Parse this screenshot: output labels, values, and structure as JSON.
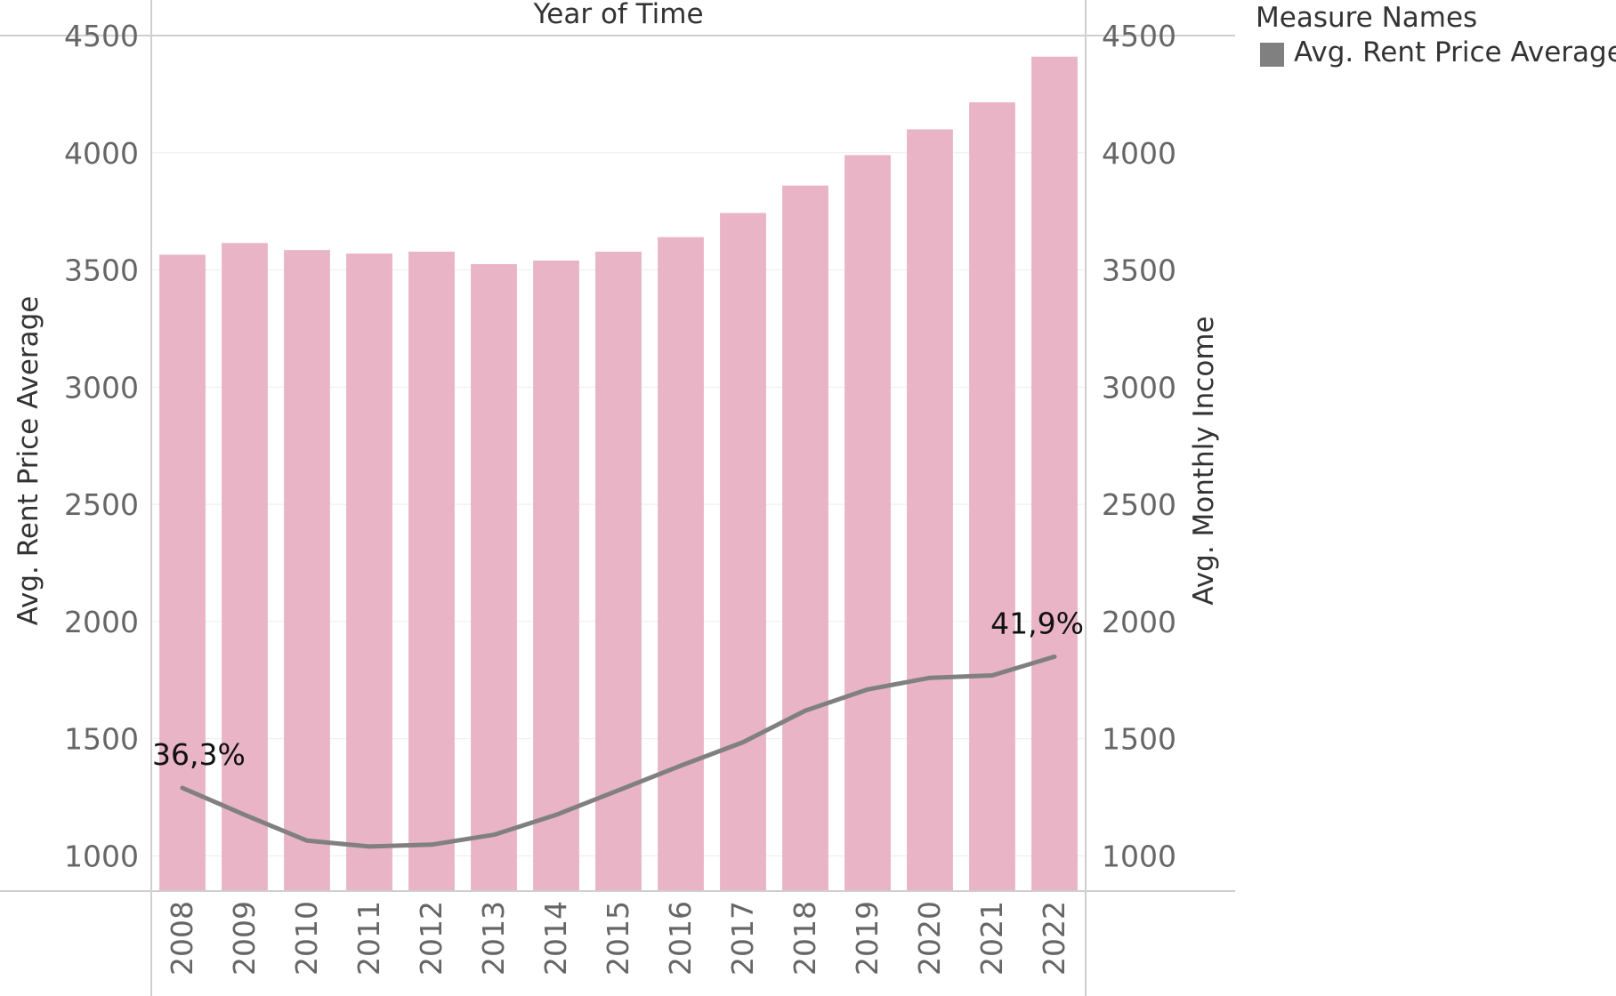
{
  "colors": {
    "bar": "#e8b4c6",
    "line": "#808080",
    "grid": "#eeeeee",
    "frame": "#cfcfcf",
    "tick_text": "#666666",
    "legend_swatch": "#808080"
  },
  "legend": {
    "title": "Measure Names",
    "items": [
      "Avg. Rent Price Average"
    ]
  },
  "chart_data": {
    "type": "bar",
    "title": "",
    "column_header": "Year of Time",
    "categories": [
      "2008",
      "2009",
      "2010",
      "2011",
      "2012",
      "2013",
      "2014",
      "2015",
      "2016",
      "2017",
      "2018",
      "2019",
      "2020",
      "2021",
      "2022"
    ],
    "ylabel": "Avg. Rent Price Average",
    "y2label": "Avg. Monthly Income",
    "ylim": [
      850,
      4500
    ],
    "y2lim": [
      850,
      4500
    ],
    "yticks": [
      1000,
      1500,
      2000,
      2500,
      3000,
      3500,
      4000,
      4500
    ],
    "y2ticks": [
      1000,
      1500,
      2000,
      2500,
      3000,
      3500,
      4000,
      4500
    ],
    "grid": true,
    "legend_position": "top-right",
    "series": [
      {
        "name": "Avg. Rent Price Average",
        "type": "bar",
        "axis": "left",
        "values": [
          3565,
          3615,
          3585,
          3570,
          3578,
          3525,
          3540,
          3578,
          3640,
          3743,
          3860,
          3990,
          4100,
          4215,
          4410
        ]
      },
      {
        "name": "Avg. Monthly Income",
        "type": "line",
        "axis": "right",
        "values": [
          1290,
          1175,
          1065,
          1040,
          1048,
          1090,
          1175,
          1280,
          1385,
          1485,
          1620,
          1710,
          1760,
          1770,
          1850
        ]
      }
    ],
    "annotations": [
      {
        "text": "36,3%",
        "category": "2008",
        "series": "Avg. Monthly Income"
      },
      {
        "text": "41,9%",
        "category": "2022",
        "series": "Avg. Monthly Income"
      }
    ]
  }
}
